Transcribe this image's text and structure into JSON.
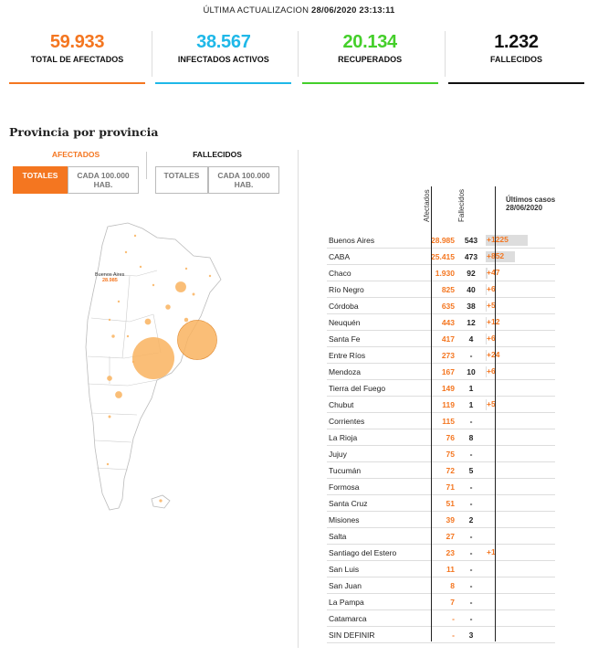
{
  "header": {
    "updated_label": "ÚLTIMA ACTUALIZACION",
    "updated_value": "28/06/2020 23:13:11"
  },
  "stats": [
    {
      "value": "59.933",
      "label": "TOTAL DE AFECTADOS",
      "color": "#f47620"
    },
    {
      "value": "38.567",
      "label": "INFECTADOS ACTIVOS",
      "color": "#1fb8e8"
    },
    {
      "value": "20.134",
      "label": "RECUPERADOS",
      "color": "#44cf2a"
    },
    {
      "value": "1.232",
      "label": "FALLECIDOS",
      "color": "#111111"
    }
  ],
  "section_title": "Provincia por provincia",
  "filters": {
    "afectados_header": "AFECTADOS",
    "fallecidos_header": "FALLECIDOS",
    "totales": "TOTALES",
    "cada": "CADA 100.000 HAB."
  },
  "map": {
    "label_province": "Buenos Aires",
    "label_value": "28.985",
    "bubble_color": "#f9b35f"
  },
  "chart_data": {
    "type": "table",
    "columns": [
      "Afectados",
      "Fallecidos",
      "Últimos casos 28/06/2020"
    ],
    "rows": [
      {
        "province": "Buenos Aires",
        "afectados": "28.985",
        "fallecidos": "543",
        "ultimos": "+1225",
        "ultimos_value": 1225
      },
      {
        "province": "CABA",
        "afectados": "25.415",
        "fallecidos": "473",
        "ultimos": "+852",
        "ultimos_value": 852
      },
      {
        "province": "Chaco",
        "afectados": "1.930",
        "fallecidos": "92",
        "ultimos": "+47",
        "ultimos_value": 47
      },
      {
        "province": "Río Negro",
        "afectados": "825",
        "fallecidos": "40",
        "ultimos": "+6",
        "ultimos_value": 6
      },
      {
        "province": "Córdoba",
        "afectados": "635",
        "fallecidos": "38",
        "ultimos": "+5",
        "ultimos_value": 5
      },
      {
        "province": "Neuquén",
        "afectados": "443",
        "fallecidos": "12",
        "ultimos": "+12",
        "ultimos_value": 12
      },
      {
        "province": "Santa Fe",
        "afectados": "417",
        "fallecidos": "4",
        "ultimos": "+6",
        "ultimos_value": 6
      },
      {
        "province": "Entre Ríos",
        "afectados": "273",
        "fallecidos": "-",
        "ultimos": "+24",
        "ultimos_value": 24
      },
      {
        "province": "Mendoza",
        "afectados": "167",
        "fallecidos": "10",
        "ultimos": "+6",
        "ultimos_value": 6
      },
      {
        "province": "Tierra del Fuego",
        "afectados": "149",
        "fallecidos": "1",
        "ultimos": "",
        "ultimos_value": 0
      },
      {
        "province": "Chubut",
        "afectados": "119",
        "fallecidos": "1",
        "ultimos": "+5",
        "ultimos_value": 5
      },
      {
        "province": "Corrientes",
        "afectados": "115",
        "fallecidos": "-",
        "ultimos": "",
        "ultimos_value": 0
      },
      {
        "province": "La Rioja",
        "afectados": "76",
        "fallecidos": "8",
        "ultimos": "",
        "ultimos_value": 0
      },
      {
        "province": "Jujuy",
        "afectados": "75",
        "fallecidos": "-",
        "ultimos": "",
        "ultimos_value": 0
      },
      {
        "province": "Tucumán",
        "afectados": "72",
        "fallecidos": "5",
        "ultimos": "",
        "ultimos_value": 0
      },
      {
        "province": "Formosa",
        "afectados": "71",
        "fallecidos": "-",
        "ultimos": "",
        "ultimos_value": 0
      },
      {
        "province": "Santa Cruz",
        "afectados": "51",
        "fallecidos": "-",
        "ultimos": "",
        "ultimos_value": 0
      },
      {
        "province": "Misiones",
        "afectados": "39",
        "fallecidos": "2",
        "ultimos": "",
        "ultimos_value": 0
      },
      {
        "province": "Salta",
        "afectados": "27",
        "fallecidos": "-",
        "ultimos": "",
        "ultimos_value": 0
      },
      {
        "province": "Santiago del Estero",
        "afectados": "23",
        "fallecidos": "-",
        "ultimos": "+1",
        "ultimos_value": 1
      },
      {
        "province": "San Luis",
        "afectados": "11",
        "fallecidos": "-",
        "ultimos": "",
        "ultimos_value": 0
      },
      {
        "province": "San Juan",
        "afectados": "8",
        "fallecidos": "-",
        "ultimos": "",
        "ultimos_value": 0
      },
      {
        "province": "La Pampa",
        "afectados": "7",
        "fallecidos": "-",
        "ultimos": "",
        "ultimos_value": 0
      },
      {
        "province": "Catamarca",
        "afectados": "-",
        "fallecidos": "-",
        "ultimos": "",
        "ultimos_value": 0
      },
      {
        "province": "SIN DEFINIR",
        "afectados": "-",
        "fallecidos": "3",
        "ultimos": "",
        "ultimos_value": 0
      }
    ]
  }
}
